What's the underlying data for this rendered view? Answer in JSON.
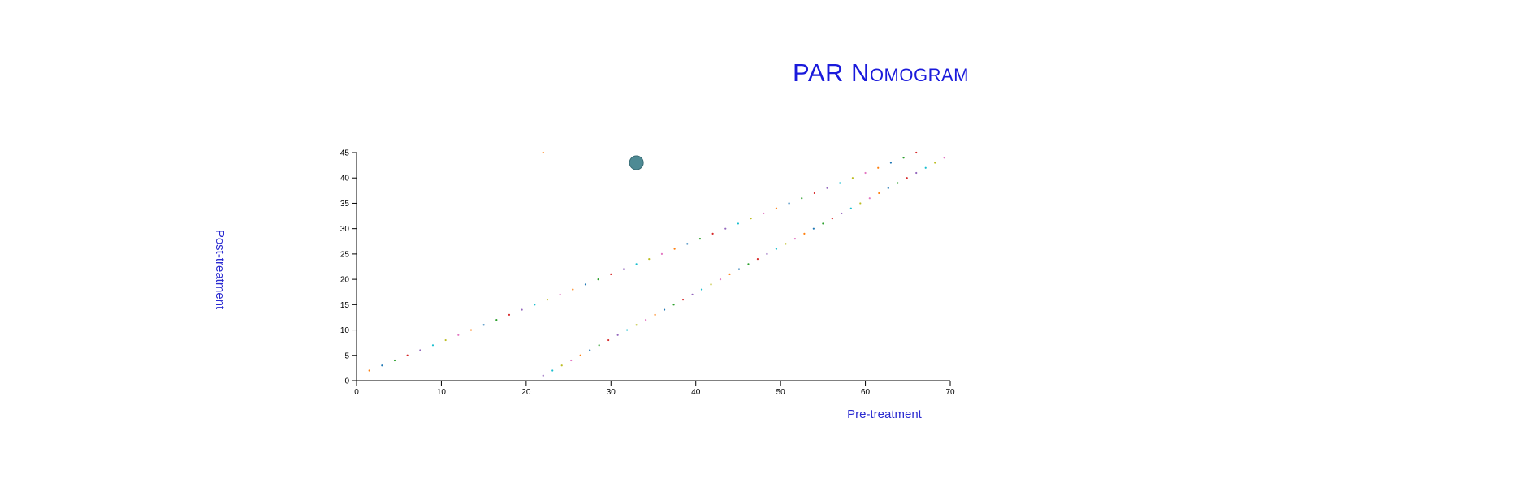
{
  "title": "PAR Nomogram",
  "chart_data": {
    "type": "scatter",
    "title": "PAR Nomogram",
    "xlabel": "Pre-treatment",
    "ylabel": "Post-treatment",
    "xlim": [
      0,
      70
    ],
    "ylim": [
      0,
      45
    ],
    "xticks": [
      "0",
      "10",
      "20",
      "30",
      "40",
      "50",
      "60",
      "70"
    ],
    "yticks": [
      "0",
      "5",
      "10",
      "15",
      "20",
      "25",
      "30",
      "35",
      "40",
      "45"
    ],
    "grid": false,
    "legend": "none",
    "series": [
      {
        "points": [
          [
            1.5,
            2
          ],
          [
            3,
            3
          ],
          [
            4.5,
            4
          ],
          [
            6,
            5
          ],
          [
            7.5,
            6
          ],
          [
            9,
            7
          ],
          [
            10.5,
            8
          ],
          [
            12,
            9
          ],
          [
            13.5,
            10
          ],
          [
            15,
            11
          ],
          [
            16.5,
            12
          ],
          [
            18,
            13
          ],
          [
            19.5,
            14
          ],
          [
            21,
            15
          ],
          [
            22.5,
            16
          ],
          [
            24,
            17
          ],
          [
            25.5,
            18
          ],
          [
            27,
            19
          ],
          [
            28.5,
            20
          ],
          [
            30,
            21
          ],
          [
            31.5,
            22
          ],
          [
            33,
            23
          ],
          [
            34.5,
            24
          ],
          [
            36,
            25
          ],
          [
            37.5,
            26
          ],
          [
            39,
            27
          ],
          [
            40.5,
            28
          ],
          [
            42,
            29
          ],
          [
            43.5,
            30
          ],
          [
            45,
            31
          ],
          [
            46.5,
            32
          ],
          [
            48,
            33
          ],
          [
            49.5,
            34
          ],
          [
            51,
            35
          ],
          [
            52.5,
            36
          ],
          [
            54,
            37
          ],
          [
            55.5,
            38
          ],
          [
            57,
            39
          ],
          [
            58.5,
            40
          ],
          [
            60,
            41
          ],
          [
            61.5,
            42
          ],
          [
            63,
            43
          ],
          [
            64.5,
            44
          ],
          [
            66,
            45
          ]
        ]
      },
      {
        "points": [
          [
            22,
            1
          ],
          [
            23.1,
            2
          ],
          [
            24.2,
            3
          ],
          [
            25.3,
            4
          ],
          [
            26.4,
            5
          ],
          [
            27.5,
            6
          ],
          [
            28.6,
            7
          ],
          [
            29.7,
            8
          ],
          [
            30.8,
            9
          ],
          [
            31.9,
            10
          ],
          [
            33,
            11
          ],
          [
            34.1,
            12
          ],
          [
            35.2,
            13
          ],
          [
            36.3,
            14
          ],
          [
            37.4,
            15
          ],
          [
            38.5,
            16
          ],
          [
            39.6,
            17
          ],
          [
            40.7,
            18
          ],
          [
            41.8,
            19
          ],
          [
            42.9,
            20
          ],
          [
            44,
            21
          ],
          [
            45.1,
            22
          ],
          [
            46.2,
            23
          ],
          [
            47.3,
            24
          ],
          [
            48.4,
            25
          ],
          [
            49.5,
            26
          ],
          [
            50.6,
            27
          ],
          [
            51.7,
            28
          ],
          [
            52.8,
            29
          ],
          [
            53.9,
            30
          ],
          [
            55,
            31
          ],
          [
            56.1,
            32
          ],
          [
            57.2,
            33
          ],
          [
            58.3,
            34
          ],
          [
            59.4,
            35
          ],
          [
            60.5,
            36
          ],
          [
            61.6,
            37
          ],
          [
            62.7,
            38
          ],
          [
            63.8,
            39
          ],
          [
            64.9,
            40
          ],
          [
            66,
            41
          ],
          [
            67.1,
            42
          ],
          [
            68.2,
            43
          ],
          [
            69.3,
            44
          ]
        ]
      },
      {
        "points": [
          [
            22,
            45
          ]
        ]
      }
    ],
    "marker": {
      "x": 33,
      "y": 43,
      "color": "#4e8a94"
    },
    "dot_colors": [
      "#ff7f0e",
      "#1f77b4",
      "#2ca02c",
      "#d62728",
      "#9467bd",
      "#17becf",
      "#bcbd22",
      "#e377c2"
    ]
  }
}
